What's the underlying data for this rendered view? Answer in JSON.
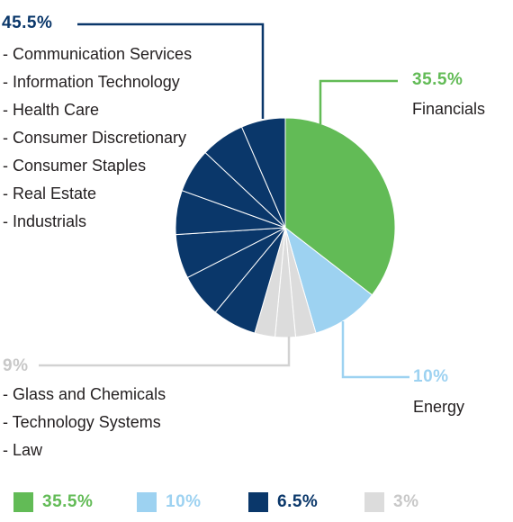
{
  "colors": {
    "financials": "#62bb56",
    "energy": "#9dd2f1",
    "navy": "#0a376a",
    "gray": "#dcdcdc",
    "gray_text": "#c8c8c8",
    "leader_navy": "#0a376a",
    "leader_green": "#62bb56",
    "leader_blue": "#9dd2f1",
    "leader_gray": "#d2d2d2"
  },
  "callouts": {
    "navy": {
      "percent": "45.5%",
      "items": [
        "- Communication Services",
        "- Information Technology",
        "- Health Care",
        "- Consumer Discretionary",
        "- Consumer Staples",
        "- Real Estate",
        "- Industrials"
      ]
    },
    "green": {
      "percent": "35.5%",
      "label": "Financials"
    },
    "blue": {
      "percent": "10%",
      "label": "Energy"
    },
    "gray": {
      "percent": "9%",
      "items": [
        "- Glass and Chemicals",
        "- Technology Systems",
        "- Law"
      ]
    }
  },
  "legend": [
    {
      "label": "35.5%",
      "color": "#62bb56"
    },
    {
      "label": "10%",
      "color": "#9dd2f1"
    },
    {
      "label": "6.5%",
      "color": "#0a376a"
    },
    {
      "label": "3%",
      "color": "#dcdcdc"
    }
  ],
  "chart_data": {
    "type": "pie",
    "title": "",
    "start_angle_deg": 0,
    "direction": "clockwise",
    "slices": [
      {
        "label": "Financials",
        "value": 35.5,
        "color": "#62bb56"
      },
      {
        "label": "Energy",
        "value": 10,
        "color": "#9dd2f1"
      },
      {
        "label": "Law",
        "value": 3,
        "color": "#dcdcdc"
      },
      {
        "label": "Technology Systems",
        "value": 3,
        "color": "#dcdcdc"
      },
      {
        "label": "Glass and Chemicals",
        "value": 3,
        "color": "#dcdcdc"
      },
      {
        "label": "Industrials",
        "value": 6.5,
        "color": "#0a376a"
      },
      {
        "label": "Real Estate",
        "value": 6.5,
        "color": "#0a376a"
      },
      {
        "label": "Consumer Staples",
        "value": 6.5,
        "color": "#0a376a"
      },
      {
        "label": "Consumer Discretionary",
        "value": 6.5,
        "color": "#0a376a"
      },
      {
        "label": "Health Care",
        "value": 6.5,
        "color": "#0a376a"
      },
      {
        "label": "Information Technology",
        "value": 6.5,
        "color": "#0a376a"
      },
      {
        "label": "Communication Services",
        "value": 6.5,
        "color": "#0a376a"
      }
    ]
  }
}
